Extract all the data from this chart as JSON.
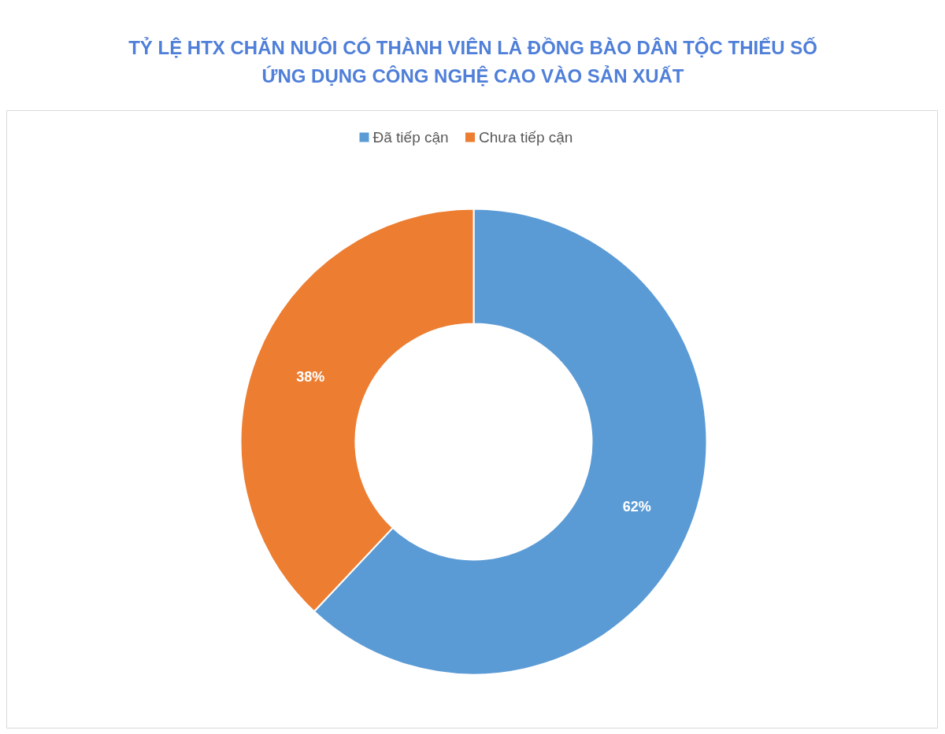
{
  "chart_data": {
    "type": "donut",
    "title": "TỶ LỆ HTX CHĂN NUÔI CÓ THÀNH VIÊN LÀ ĐỒNG BÀO DÂN TỘC THIỂU SỐ\nỨNG DỤNG CÔNG NGHỆ CAO VÀO SẢN XUẤT",
    "categories": [
      "Đã tiếp cận",
      "Chưa tiếp cận"
    ],
    "values": [
      62,
      38
    ],
    "colors": [
      "#5b9bd5",
      "#ed7d31"
    ],
    "value_labels": [
      "62%",
      "38%"
    ],
    "legend": "top"
  }
}
